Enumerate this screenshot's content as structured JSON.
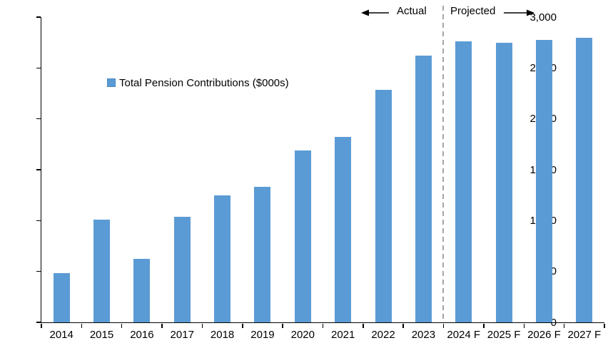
{
  "chart_data": {
    "type": "bar",
    "title": "",
    "legend": "Total Pension Contributions ($000s)",
    "categories": [
      "2014",
      "2015",
      "2016",
      "2017",
      "2018",
      "2019",
      "2020",
      "2021",
      "2022",
      "2023",
      "2024 F",
      "2025 F",
      "2026 F",
      "2027 F"
    ],
    "values": [
      485,
      1010,
      625,
      1040,
      1250,
      1330,
      1690,
      1825,
      2285,
      2620,
      2760,
      2750,
      2775,
      2800
    ],
    "xlabel": "",
    "ylabel": "",
    "ylim": [
      0,
      3000
    ],
    "ytick_interval": 500,
    "ytick_labels": [
      "0",
      "500",
      "1,000",
      "1,500",
      "2,000",
      "2,500",
      "3,000"
    ],
    "grid": false,
    "legend_position": "inside-upper-left",
    "annotations": {
      "actual": "Actual",
      "projected": "Projected"
    },
    "divider_after_category": "2023",
    "divider_after_index": 9
  },
  "colors": {
    "bar": "#5B9BD5",
    "legend_marker_border": "#4A88C0",
    "divider": "#A6A6A6",
    "axis": "#000000",
    "background": "#FFFFFF"
  }
}
